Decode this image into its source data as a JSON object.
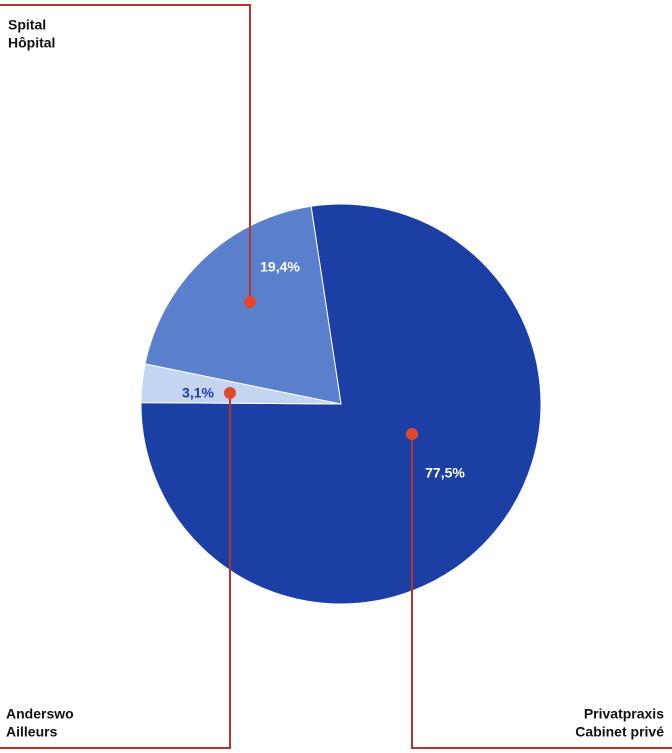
{
  "chart_data": {
    "type": "pie",
    "labels": [
      [
        "Privatpraxis",
        "Cabinet privé"
      ],
      [
        "Anderswo",
        "Ailleurs"
      ],
      [
        "Spital",
        "Hôpital"
      ]
    ],
    "values": [
      77.5,
      3.1,
      19.4
    ],
    "value_labels": [
      "77,5%",
      "3,1%",
      "19,4%"
    ],
    "colors": [
      "#1c3fa6",
      "#c4d5f1",
      "#5a80cd"
    ]
  }
}
